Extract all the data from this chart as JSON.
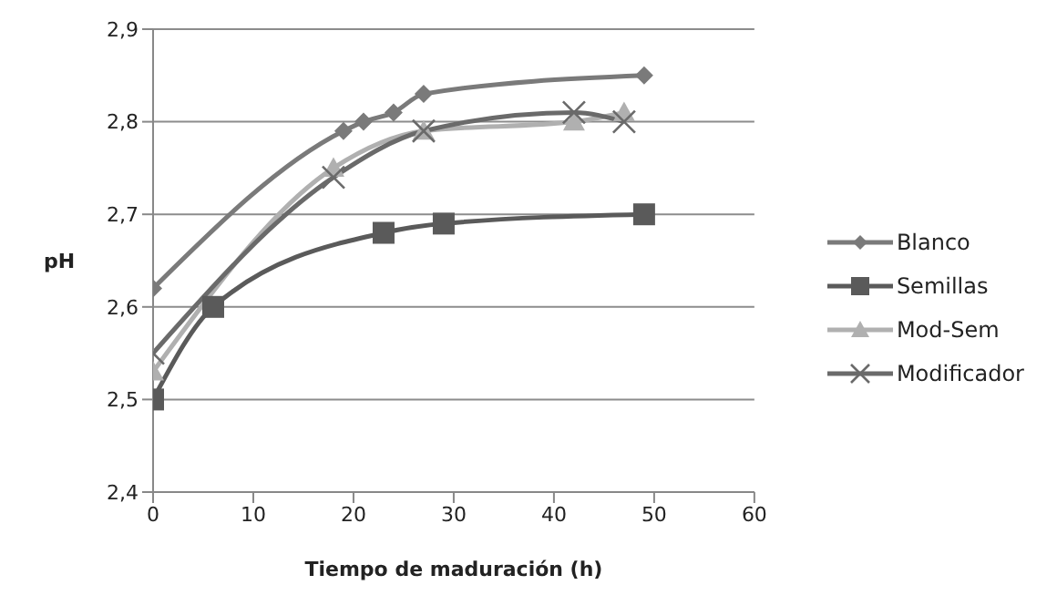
{
  "chart_data": {
    "type": "line",
    "xlabel": "Tiempo de maduración  (h)",
    "ylabel": "pH",
    "xlim": [
      0,
      60
    ],
    "xticks": [
      0,
      10,
      20,
      30,
      40,
      50,
      60
    ],
    "ylim": [
      2.4,
      2.9
    ],
    "yticks": [
      {
        "value": 2.4,
        "label": "2,4"
      },
      {
        "value": 2.5,
        "label": "2,5"
      },
      {
        "value": 2.6,
        "label": "2,6"
      },
      {
        "value": 2.7,
        "label": "2,7"
      },
      {
        "value": 2.8,
        "label": "2,8"
      },
      {
        "value": 2.9,
        "label": "2,9"
      }
    ],
    "grid": "y",
    "legend": "right",
    "series": [
      {
        "name": "Blanco",
        "color": "#7a7a7a",
        "marker": "diamond",
        "x": [
          0,
          19,
          21,
          24,
          27,
          49
        ],
        "values": [
          2.62,
          2.79,
          2.8,
          2.81,
          2.83,
          2.85
        ]
      },
      {
        "name": "Semillas",
        "color": "#5a5a5a",
        "marker": "square",
        "x": [
          0,
          6,
          23,
          29,
          49
        ],
        "values": [
          2.5,
          2.6,
          2.68,
          2.69,
          2.7
        ]
      },
      {
        "name": "Mod-Sem",
        "color": "#b0b0b0",
        "marker": "triangle",
        "x": [
          0,
          18,
          27,
          42,
          47
        ],
        "values": [
          2.53,
          2.75,
          2.79,
          2.8,
          2.81
        ]
      },
      {
        "name": "Modificador",
        "color": "#6a6a6a",
        "marker": "cross",
        "x": [
          0,
          18,
          27,
          42,
          47
        ],
        "values": [
          2.55,
          2.74,
          2.79,
          2.81,
          2.8
        ]
      }
    ]
  }
}
